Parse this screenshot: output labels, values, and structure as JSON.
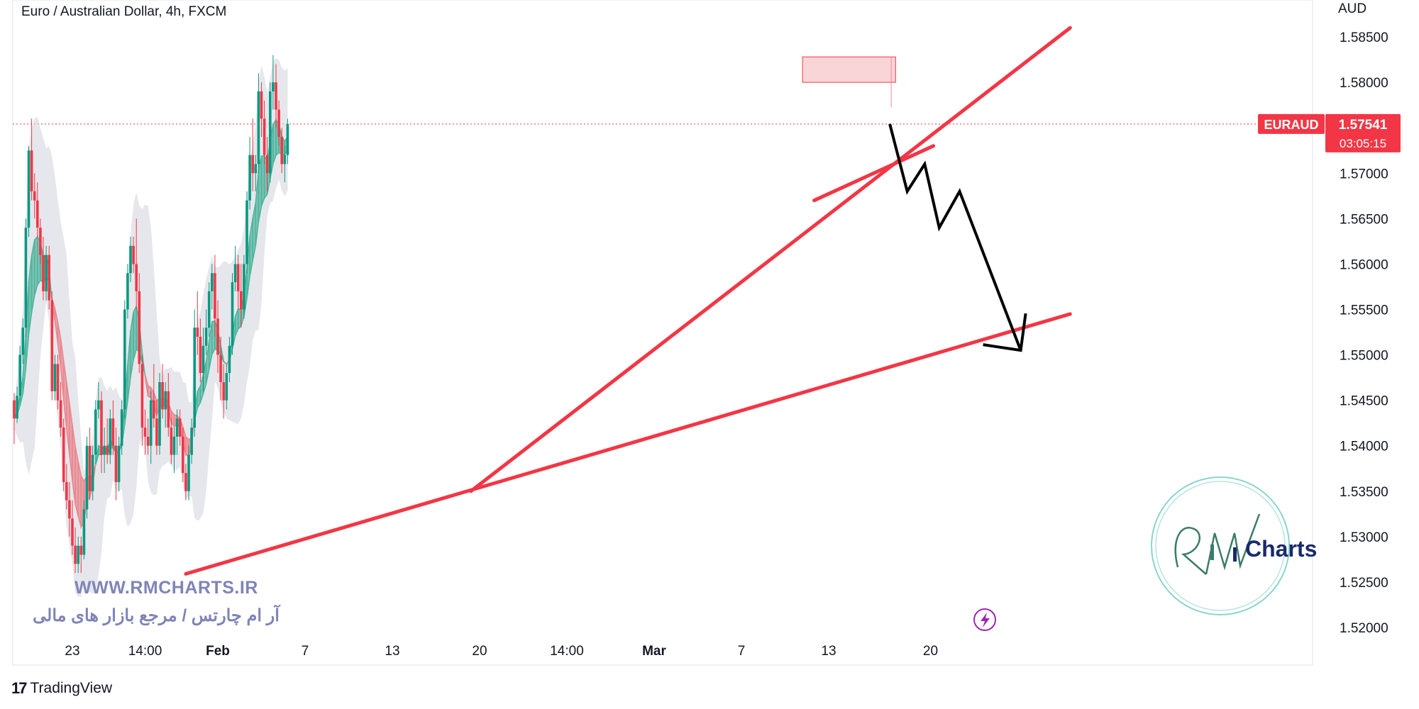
{
  "header": {
    "title": "Euro / Australian Dollar, 4h, FXCM",
    "unit": "AUD"
  },
  "price_tag": {
    "symbol": "EURAUD",
    "price": "1.57541",
    "countdown": "03:05:15"
  },
  "watermark": {
    "url": "WWW.RMCHARTS.IR",
    "persian": "آر ام چارتس / مرجع بازار های مالی",
    "logo_text": "Charts"
  },
  "footer": {
    "brand": "TradingView"
  },
  "colors": {
    "up": "#089981",
    "down": "#f23645",
    "trend": "#f23645",
    "arrow": "#000000",
    "zone": "#f7b9bd"
  },
  "chart_data": {
    "type": "candlestick",
    "symbol": "EURAUD",
    "timeframe": "4h",
    "ylim": [
      1.52,
      1.5875
    ],
    "y_ticks": [
      "1.52000",
      "1.52500",
      "1.53000",
      "1.53500",
      "1.54000",
      "1.54500",
      "1.55000",
      "1.55500",
      "1.56000",
      "1.56500",
      "1.57000",
      "1.57500",
      "1.58000",
      "1.58500"
    ],
    "x_labels": [
      "23",
      "14:00",
      "Feb",
      "7",
      "13",
      "20",
      "14:00",
      "Mar",
      "7",
      "13",
      "20"
    ],
    "x_label_idx": [
      20,
      45,
      70,
      100,
      130,
      160,
      190,
      220,
      250,
      280,
      315
    ],
    "last_price": 1.57541,
    "ohlc": [
      [
        1.545,
        1.5458,
        1.5402,
        1.543
      ],
      [
        1.543,
        1.5465,
        1.5425,
        1.5455
      ],
      [
        1.5455,
        1.551,
        1.545,
        1.55
      ],
      [
        1.55,
        1.554,
        1.549,
        1.553
      ],
      [
        1.553,
        1.565,
        1.552,
        1.564
      ],
      [
        1.564,
        1.573,
        1.563,
        1.5725
      ],
      [
        1.5725,
        1.576,
        1.567,
        1.568
      ],
      [
        1.568,
        1.57,
        1.565,
        1.567
      ],
      [
        1.567,
        1.569,
        1.563,
        1.564
      ],
      [
        1.564,
        1.565,
        1.56,
        1.561
      ],
      [
        1.561,
        1.563,
        1.556,
        1.557
      ],
      [
        1.557,
        1.562,
        1.556,
        1.561
      ],
      [
        1.561,
        1.562,
        1.555,
        1.556
      ],
      [
        1.556,
        1.557,
        1.545,
        1.546
      ],
      [
        1.546,
        1.55,
        1.545,
        1.549
      ],
      [
        1.549,
        1.55,
        1.544,
        1.545
      ],
      [
        1.545,
        1.547,
        1.541,
        1.542
      ],
      [
        1.542,
        1.543,
        1.535,
        1.536
      ],
      [
        1.536,
        1.538,
        1.533,
        1.534
      ],
      [
        1.534,
        1.536,
        1.53,
        1.532
      ],
      [
        1.532,
        1.534,
        1.528,
        1.529
      ],
      [
        1.529,
        1.531,
        1.526,
        1.527
      ],
      [
        1.527,
        1.53,
        1.526,
        1.529
      ],
      [
        1.529,
        1.53,
        1.526,
        1.528
      ],
      [
        1.528,
        1.534,
        1.5275,
        1.533
      ],
      [
        1.533,
        1.541,
        1.532,
        1.54
      ],
      [
        1.54,
        1.542,
        1.534,
        1.535
      ],
      [
        1.535,
        1.54,
        1.534,
        1.539
      ],
      [
        1.539,
        1.545,
        1.538,
        1.544
      ],
      [
        1.544,
        1.547,
        1.543,
        1.545
      ],
      [
        1.545,
        1.546,
        1.537,
        1.539
      ],
      [
        1.539,
        1.542,
        1.537,
        1.54
      ],
      [
        1.54,
        1.543,
        1.538,
        1.539
      ],
      [
        1.539,
        1.544,
        1.538,
        1.543
      ],
      [
        1.543,
        1.545,
        1.539,
        1.54
      ],
      [
        1.54,
        1.542,
        1.534,
        1.536
      ],
      [
        1.536,
        1.541,
        1.535,
        1.54
      ],
      [
        1.54,
        1.545,
        1.539,
        1.544
      ],
      [
        1.544,
        1.556,
        1.543,
        1.555
      ],
      [
        1.555,
        1.56,
        1.554,
        1.559
      ],
      [
        1.559,
        1.563,
        1.558,
        1.562
      ],
      [
        1.562,
        1.563,
        1.559,
        1.56
      ],
      [
        1.56,
        1.565,
        1.555,
        1.557
      ],
      [
        1.557,
        1.559,
        1.548,
        1.549
      ],
      [
        1.549,
        1.55,
        1.54,
        1.542
      ],
      [
        1.542,
        1.544,
        1.539,
        1.541
      ],
      [
        1.541,
        1.543,
        1.539,
        1.54
      ],
      [
        1.54,
        1.546,
        1.538,
        1.545
      ],
      [
        1.545,
        1.549,
        1.542,
        1.543
      ],
      [
        1.543,
        1.545,
        1.539,
        1.54
      ],
      [
        1.54,
        1.548,
        1.539,
        1.547
      ],
      [
        1.547,
        1.549,
        1.543,
        1.544
      ],
      [
        1.544,
        1.547,
        1.542,
        1.546
      ],
      [
        1.546,
        1.548,
        1.541,
        1.542
      ],
      [
        1.542,
        1.543,
        1.538,
        1.539
      ],
      [
        1.539,
        1.542,
        1.537,
        1.541
      ],
      [
        1.541,
        1.544,
        1.539,
        1.543
      ],
      [
        1.543,
        1.544,
        1.54,
        1.541
      ],
      [
        1.541,
        1.542,
        1.536,
        1.537
      ],
      [
        1.537,
        1.538,
        1.534,
        1.535
      ],
      [
        1.535,
        1.54,
        1.534,
        1.539
      ],
      [
        1.539,
        1.543,
        1.538,
        1.542
      ],
      [
        1.542,
        1.555,
        1.541,
        1.553
      ],
      [
        1.553,
        1.557,
        1.55,
        1.552
      ],
      [
        1.552,
        1.554,
        1.547,
        1.548
      ],
      [
        1.548,
        1.553,
        1.546,
        1.551
      ],
      [
        1.551,
        1.555,
        1.55,
        1.553
      ],
      [
        1.553,
        1.558,
        1.552,
        1.557
      ],
      [
        1.557,
        1.56,
        1.555,
        1.559
      ],
      [
        1.559,
        1.561,
        1.552,
        1.554
      ],
      [
        1.554,
        1.556,
        1.548,
        1.55
      ],
      [
        1.55,
        1.552,
        1.545,
        1.547
      ],
      [
        1.547,
        1.549,
        1.543,
        1.545
      ],
      [
        1.545,
        1.549,
        1.544,
        1.548
      ],
      [
        1.548,
        1.552,
        1.547,
        1.551
      ],
      [
        1.551,
        1.559,
        1.55,
        1.558
      ],
      [
        1.558,
        1.562,
        1.557,
        1.56
      ],
      [
        1.56,
        1.561,
        1.555,
        1.557
      ],
      [
        1.557,
        1.56,
        1.553,
        1.555
      ],
      [
        1.555,
        1.561,
        1.554,
        1.56
      ],
      [
        1.56,
        1.568,
        1.559,
        1.567
      ],
      [
        1.567,
        1.574,
        1.566,
        1.572
      ],
      [
        1.572,
        1.576,
        1.568,
        1.57
      ],
      [
        1.57,
        1.572,
        1.568,
        1.571
      ],
      [
        1.571,
        1.581,
        1.57,
        1.579
      ],
      [
        1.579,
        1.58,
        1.574,
        1.576
      ],
      [
        1.576,
        1.578,
        1.571,
        1.572
      ],
      [
        1.572,
        1.574,
        1.568,
        1.57
      ],
      [
        1.57,
        1.58,
        1.569,
        1.579
      ],
      [
        1.579,
        1.583,
        1.577,
        1.58
      ],
      [
        1.58,
        1.582,
        1.575,
        1.577
      ],
      [
        1.577,
        1.578,
        1.573,
        1.574
      ],
      [
        1.574,
        1.575,
        1.57,
        1.571
      ],
      [
        1.571,
        1.573,
        1.569,
        1.572
      ],
      [
        1.572,
        1.576,
        1.571,
        1.57541
      ]
    ],
    "price_zone": {
      "from": 1.58,
      "to": 1.5828,
      "start_idx": 271,
      "end_idx": 303
    },
    "trendlines": [
      {
        "from": [
          59,
          1.5259
        ],
        "to": [
          363,
          1.5545
        ]
      },
      {
        "from": [
          157,
          1.535
        ],
        "to": [
          363,
          1.586
        ]
      },
      {
        "from": [
          275,
          1.567
        ],
        "to": [
          316,
          1.573
        ]
      }
    ],
    "projection_path": [
      [
        301,
        1.57541
      ],
      [
        307,
        1.568
      ],
      [
        313,
        1.571
      ],
      [
        318,
        1.564
      ],
      [
        325,
        1.568
      ],
      [
        346,
        1.5505
      ]
    ]
  }
}
